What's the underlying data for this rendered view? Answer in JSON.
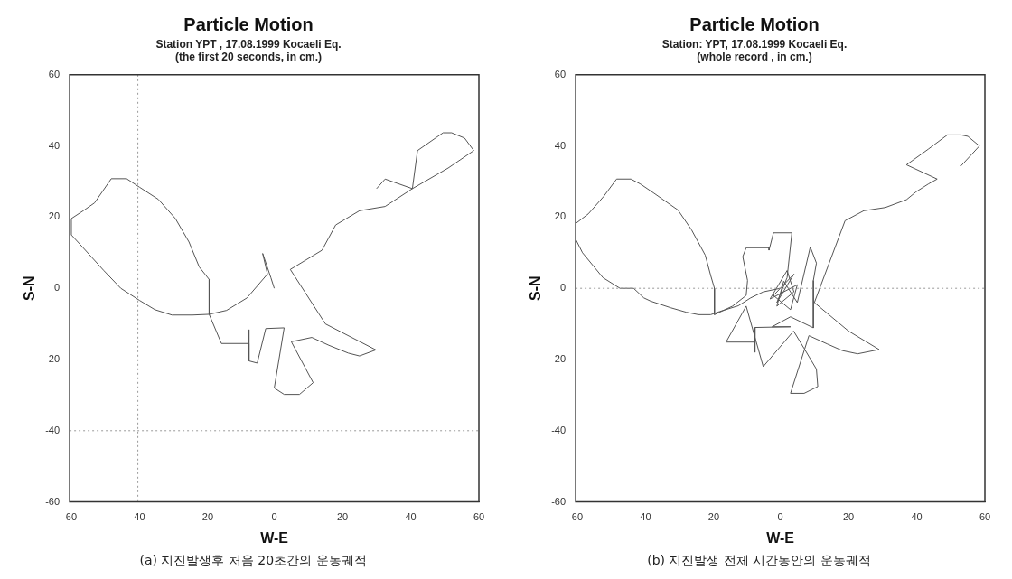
{
  "chart_data": [
    {
      "type": "line",
      "title": "Particle Motion",
      "subtitle": "Station YPT , 17.08.1999 Kocaeli Eq.\n(the first 20 seconds, in cm.)",
      "xlabel": "W-E",
      "ylabel": "S-N",
      "annotations": [
        "(a) 지진발생후 처음 20초간의 운동궤적"
      ],
      "xlim": [
        -60,
        60
      ],
      "ylim": [
        -60,
        60
      ],
      "xticks": [
        -60,
        -40,
        -20,
        0,
        20,
        40,
        60
      ],
      "yticks": [
        -60,
        -40,
        -20,
        0,
        20,
        40,
        60
      ],
      "grid": false,
      "legend": false,
      "line_style": "solid",
      "ref_lines": [
        {
          "axis": "x",
          "value": -40,
          "color": "#999999",
          "line_style": "dotted"
        },
        {
          "axis": "y",
          "value": -40,
          "color": "#999999",
          "line_style": "dotted"
        }
      ],
      "series": [
        {
          "color": "#555555",
          "x": [
            0,
            -1,
            -3.4,
            -2,
            -8,
            -14,
            -19.1,
            -24,
            -30,
            -35,
            -39.5,
            -45,
            -50,
            -57,
            -59.5,
            -59.5,
            -56,
            -52.7,
            -47.8,
            -43.3,
            -39.5,
            -34,
            -29,
            -25,
            -22,
            -19.1,
            -19.1,
            -15.5,
            -7.4,
            -7.4,
            -7.4,
            -5,
            -2.5,
            2.9,
            0,
            2.9,
            7.4,
            11.4,
            5,
            11,
            16,
            21.7,
            25,
            29.8,
            15,
            4.7,
            14,
            18,
            25,
            32.5,
            40.5,
            42,
            49.5,
            52,
            55.8,
            58.5,
            51,
            40.5,
            32.5,
            30
          ],
          "values": [
            0,
            3,
            9.8,
            4,
            -2.7,
            -6.2,
            -7.3,
            -7.5,
            -7.5,
            -6,
            -3.4,
            0,
            5,
            12.4,
            15,
            19.6,
            21.8,
            24,
            30.8,
            30.8,
            28.4,
            25,
            19.6,
            13,
            6,
            2.5,
            -7.3,
            -15.5,
            -15.5,
            -11.6,
            -20.4,
            -21,
            -11.3,
            -11.1,
            -28,
            -29.8,
            -29.8,
            -26.5,
            -15,
            -13.8,
            -16,
            -18.2,
            -19,
            -17.3,
            -10,
            5.3,
            10.7,
            17.8,
            21.8,
            23,
            28,
            38.7,
            43.7,
            43.7,
            42.2,
            38.7,
            33.8,
            28,
            30.7,
            28
          ]
        }
      ]
    },
    {
      "type": "line",
      "title": "Particle Motion",
      "subtitle": "Station: YPT, 17.08.1999 Kocaeli Eq.\n(whole record , in cm.)",
      "xlabel": "W-E",
      "ylabel": "S-N",
      "annotations": [
        "(b) 지진발생 전체 시간동안의 운동궤적"
      ],
      "xlim": [
        -60,
        60
      ],
      "ylim": [
        -60,
        60
      ],
      "xticks": [
        -60,
        -40,
        -20,
        0,
        20,
        40,
        60
      ],
      "yticks": [
        -60,
        -40,
        -20,
        0,
        20,
        40,
        60
      ],
      "grid": false,
      "legend": false,
      "line_style": "solid",
      "ref_lines": [
        {
          "axis": "y",
          "value": 0,
          "color": "#999999",
          "line_style": "dotted"
        }
      ],
      "series": [
        {
          "color": "#555555",
          "x": [
            0,
            -5,
            -8.7,
            -12.3,
            -17.7,
            -20.4,
            -24,
            -27.6,
            -32,
            -38,
            -40,
            -43,
            -47,
            -52,
            -58,
            -60,
            -60,
            -56.3,
            -51.8,
            -48,
            -43.8,
            -41,
            -37,
            -30,
            -26,
            -22,
            -20.4,
            -19.3,
            -19.3,
            -14,
            -10,
            -9.6,
            -11,
            -10,
            -3.3,
            -3.3,
            -2,
            3.4,
            2,
            -1,
            4,
            -2,
            3,
            5,
            -3,
            2,
            4,
            -1,
            1,
            5,
            8.8,
            10.6,
            9.7,
            9.7,
            3,
            -2.4,
            3,
            -7.4,
            -7.4,
            -7.4,
            -15.9,
            -10,
            -5,
            3.9,
            7,
            10.6,
            11,
            7,
            3,
            8.4,
            13.7,
            18.2,
            22.7,
            29,
            20,
            10,
            19,
            24.5,
            30.8,
            37,
            39.8,
            43.4,
            46,
            37,
            43.4,
            49,
            53,
            55,
            58.4,
            53
          ],
          "values": [
            0,
            -1,
            -2.7,
            -4.9,
            -6.5,
            -7.4,
            -7.4,
            -6.7,
            -5.5,
            -3.6,
            -2.7,
            0,
            0,
            3,
            10,
            13.8,
            18.2,
            20.9,
            25.8,
            30.7,
            30.7,
            29.3,
            26.7,
            22,
            16.4,
            9.3,
            3.6,
            0,
            -7.4,
            -5,
            -2,
            2.2,
            8.9,
            11.4,
            11.4,
            10.7,
            15.6,
            15.6,
            3,
            -4,
            4,
            -2,
            -6,
            1,
            -3,
            5,
            -1,
            -5,
            2,
            -4,
            11.6,
            7.1,
            2.2,
            -11.1,
            -8,
            -10.8,
            -10.8,
            -11,
            -18,
            -15.1,
            -15.1,
            -5,
            -22,
            -12,
            -16.9,
            -22.7,
            -27.6,
            -29.5,
            -29.5,
            -13.3,
            -15.6,
            -17.5,
            -18.4,
            -17.2,
            -12,
            -4,
            19,
            21.8,
            22.7,
            24.9,
            27.1,
            29.3,
            30.7,
            34.7,
            39.1,
            43.1,
            43.1,
            42.7,
            40,
            34.4
          ]
        }
      ]
    }
  ]
}
